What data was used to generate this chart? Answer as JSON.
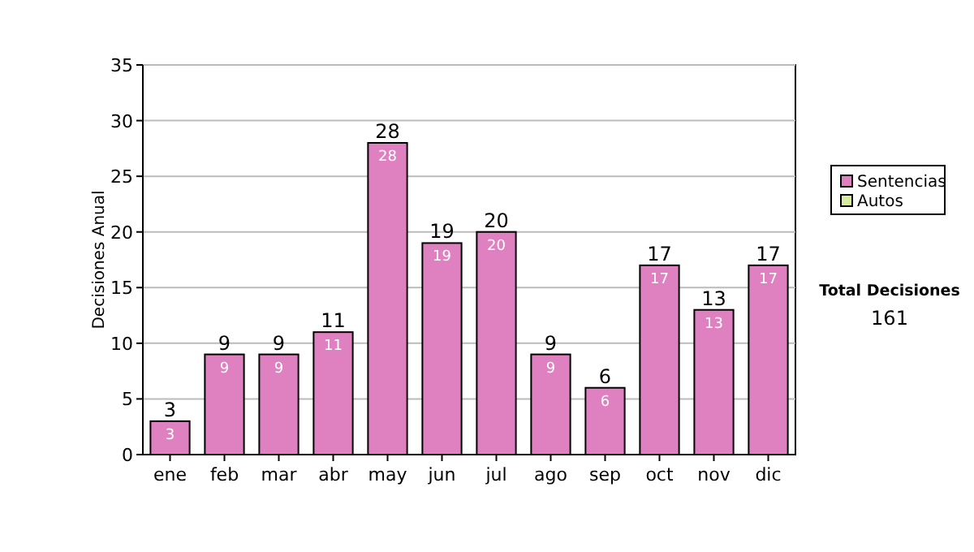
{
  "chart_data": {
    "type": "bar",
    "stacked": true,
    "ylabel": "Decisiones Anual",
    "categories": [
      "ene",
      "feb",
      "mar",
      "abr",
      "may",
      "jun",
      "jul",
      "ago",
      "sep",
      "oct",
      "nov",
      "dic"
    ],
    "series": [
      {
        "name": "Sentencias",
        "color": "#df80c0",
        "values": [
          3,
          9,
          9,
          11,
          28,
          19,
          20,
          9,
          6,
          17,
          13,
          17
        ],
        "value_labels": [
          "3",
          "9",
          "9",
          "11",
          "28",
          "19",
          "20",
          "9",
          "6",
          "17",
          "13",
          "17"
        ]
      },
      {
        "name": "Autos",
        "color": "#d8eca0",
        "values": [
          0,
          0,
          0,
          0,
          0,
          0,
          0,
          0,
          0,
          0,
          0,
          0
        ]
      }
    ],
    "totals": [
      "3",
      "9",
      "9",
      "11",
      "28",
      "19",
      "20",
      "9",
      "6",
      "17",
      "13",
      "17"
    ],
    "ylim": [
      0,
      35
    ],
    "yticks": [
      0,
      5,
      10,
      15,
      20,
      25,
      30,
      35
    ],
    "grid": "y",
    "legend": "right",
    "annotations": [
      "Total Decisiones",
      "161"
    ]
  }
}
